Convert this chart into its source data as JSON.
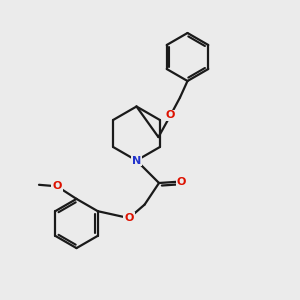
{
  "bg_color": "#ebebeb",
  "bond_color": "#1a1a1a",
  "oxygen_color": "#dd1100",
  "nitrogen_color": "#2233cc",
  "bond_width": 1.6,
  "font_size_atom": 8.0,
  "figsize": [
    3.0,
    3.0
  ],
  "dpi": 100,
  "xlim": [
    0,
    10
  ],
  "ylim": [
    0,
    10
  ]
}
